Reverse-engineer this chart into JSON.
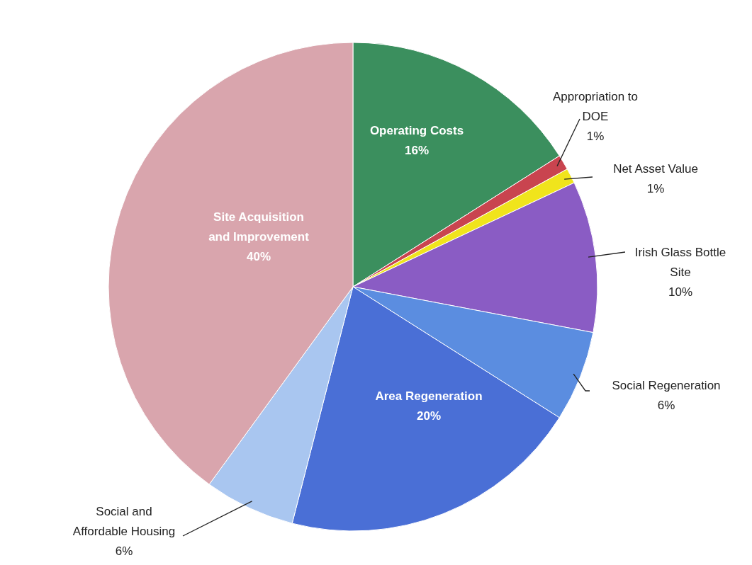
{
  "chart_data": {
    "type": "pie",
    "categories": [
      "Operating Costs",
      "Appropriation to DOE",
      "Net Asset Value",
      "Irish Glass Bottle Site",
      "Social Regeneration",
      "Area Regeneration",
      "Social and Affordable Housing",
      "Site Acquisition and Improvement"
    ],
    "values": [
      16,
      1,
      1,
      10,
      6,
      20,
      6,
      40
    ],
    "colors": [
      "#3b8f5e",
      "#c9444f",
      "#f0e41c",
      "#8a5cc4",
      "#5b8de0",
      "#4a6fd6",
      "#a9c6f0",
      "#d9a5ad"
    ],
    "value_labels": [
      "16%",
      "1%",
      "1%",
      "10%",
      "6%",
      "20%",
      "6%",
      "40%"
    ]
  }
}
